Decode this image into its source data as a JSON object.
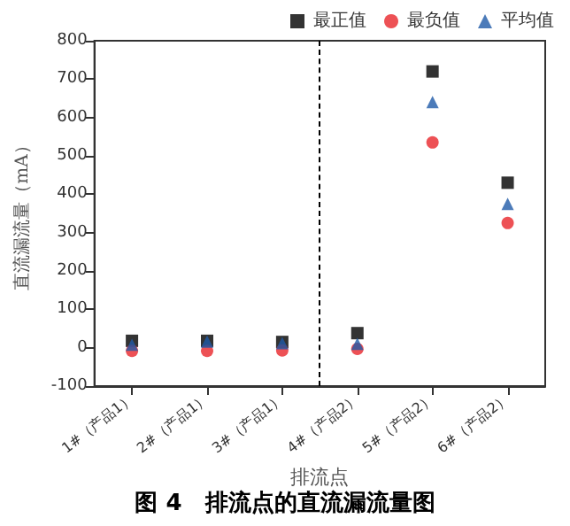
{
  "chart_data": {
    "type": "scatter",
    "title": "图 4　排流点的直流漏流量图",
    "xlabel": "排流点",
    "ylabel": "直流漏流量（mA）",
    "categories": [
      "1#（产品1）",
      "2#（产品1）",
      "3#（产品1）",
      "4#（产品2）",
      "5#（产品2）",
      "6#（产品2）"
    ],
    "series": [
      {
        "name": "最正值",
        "color": "#000000",
        "marker": "square",
        "values": [
          18,
          18,
          15,
          38,
          720,
          430
        ]
      },
      {
        "name": "最负值",
        "color": "#e8262a",
        "marker": "circle",
        "values": [
          -8,
          -8,
          -7,
          -3,
          535,
          325
        ]
      },
      {
        "name": "平均值",
        "color": "#1f5aa8",
        "marker": "triangle",
        "values": [
          8,
          16,
          12,
          10,
          640,
          375
        ]
      }
    ],
    "ylim": [
      -100,
      800
    ],
    "yticks": [
      -100,
      0,
      100,
      200,
      300,
      400,
      500,
      600,
      700,
      800
    ],
    "grid": false,
    "legend": "top right"
  }
}
